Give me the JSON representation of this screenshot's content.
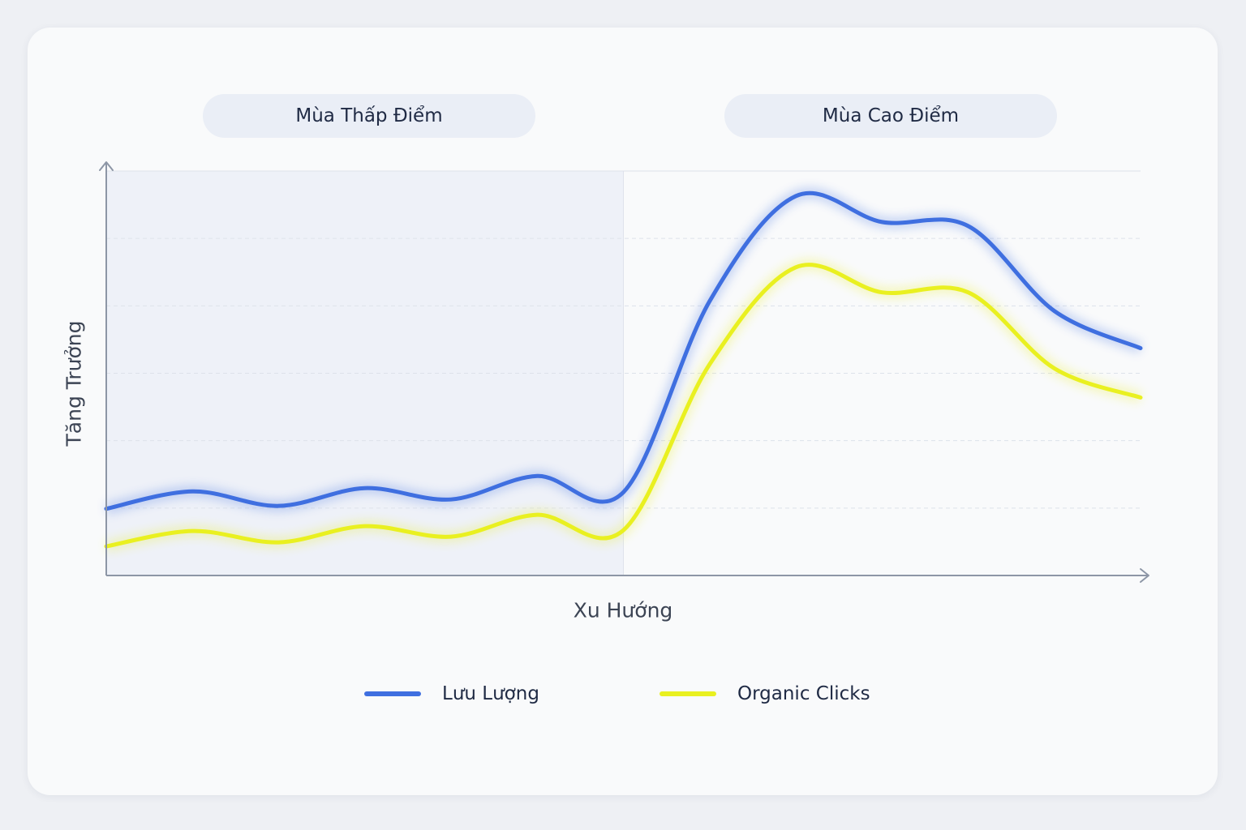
{
  "chart_data": {
    "type": "line",
    "title": "",
    "xlabel": "Xu Hướng",
    "ylabel": "Tăng Trưởng",
    "x": [
      0,
      1,
      2,
      3,
      4,
      5,
      6,
      7,
      8,
      9,
      10,
      11,
      12
    ],
    "xlim": [
      0,
      12
    ],
    "ylim": [
      0,
      100
    ],
    "grid": true,
    "legend_position": "bottom",
    "regions": [
      {
        "label": "Mùa Thấp Điểm",
        "x_range": [
          0,
          6
        ]
      },
      {
        "label": "Mùa Cao Điểm",
        "x_range": [
          6,
          12
        ]
      }
    ],
    "series": [
      {
        "name": "Lưu Lượng",
        "color": "#3f6fe0",
        "values": [
          16.5,
          20.8,
          17.2,
          21.6,
          18.8,
          24.6,
          20.6,
          67.8,
          93.8,
          87.4,
          86.4,
          65.4,
          56.2
        ]
      },
      {
        "name": "Organic Clicks",
        "color": "#e9f020",
        "values": [
          7.2,
          11.0,
          8.2,
          12.2,
          9.6,
          15.0,
          11.2,
          52.2,
          76.2,
          70.0,
          70.0,
          51.2,
          44.0
        ]
      }
    ]
  }
}
